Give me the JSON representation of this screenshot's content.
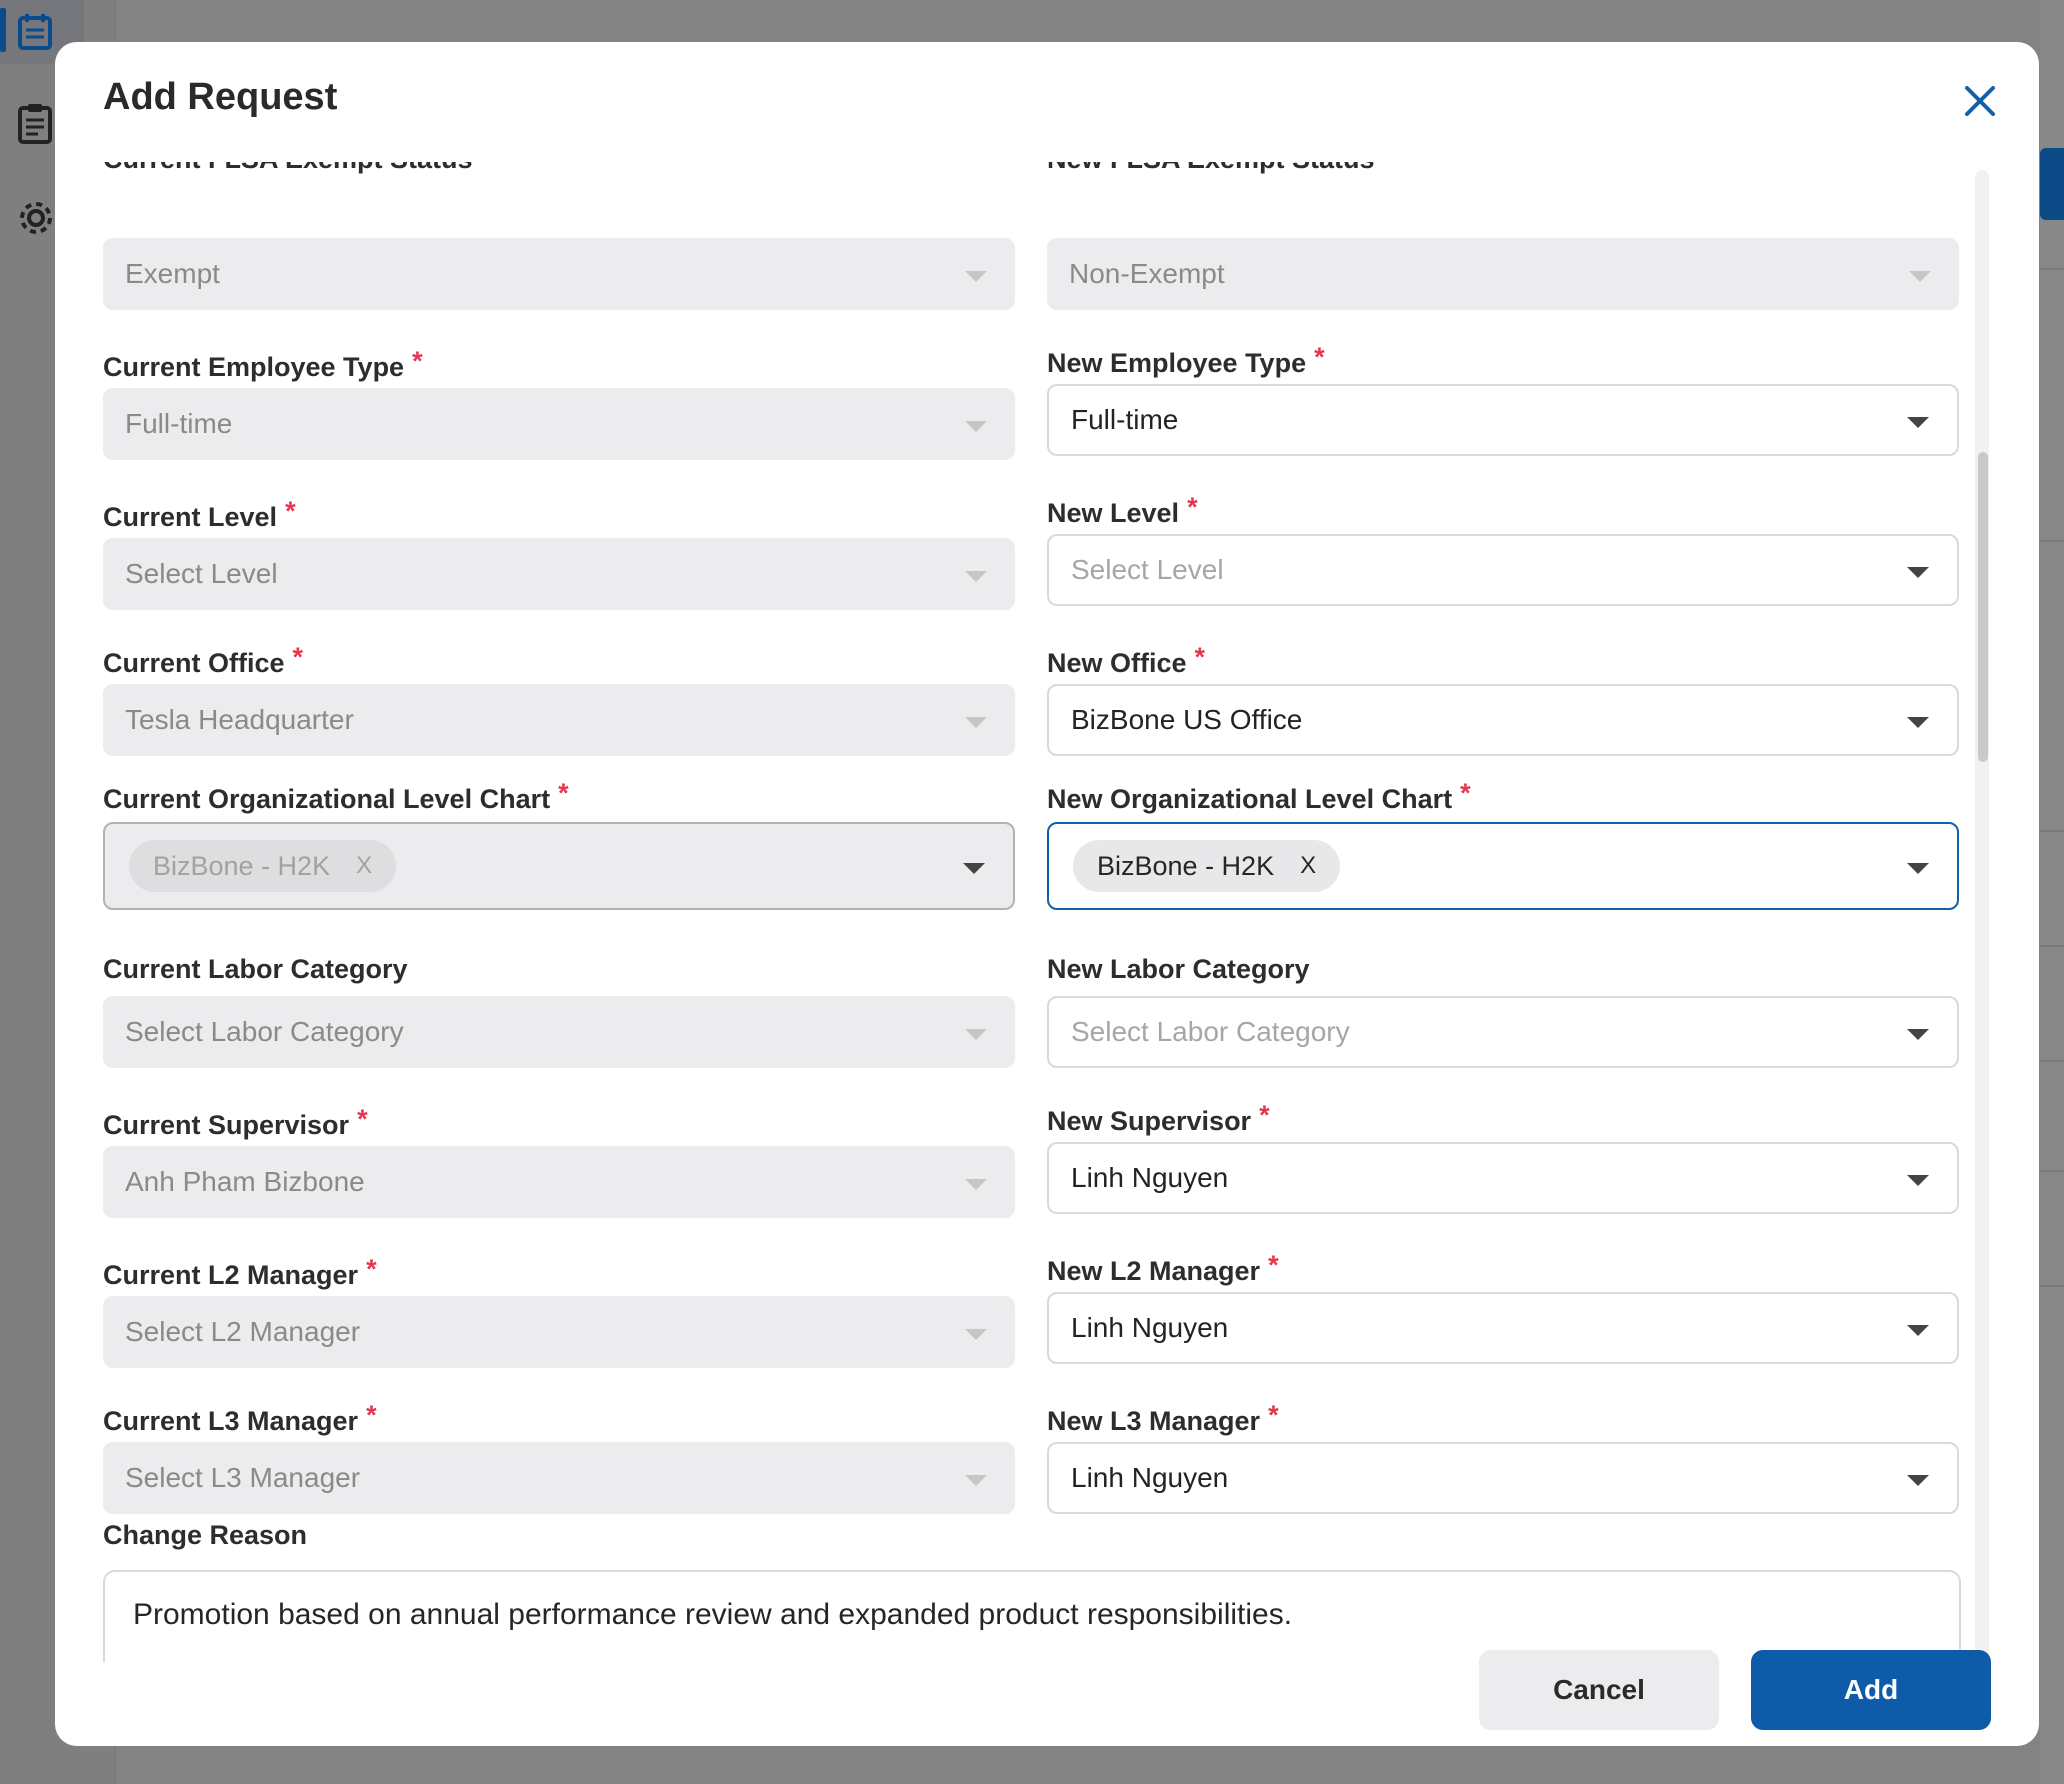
{
  "modal": {
    "title": "Add Request",
    "close_icon": "close-icon"
  },
  "form": {
    "current_flsa_label": "Current FLSA Exempt Status",
    "new_flsa_label": "New FLSA Exempt Status",
    "current_flsa_value": "Exempt",
    "new_flsa_value": "Non-Exempt",
    "current_employee_type_label": "Current Employee Type",
    "current_employee_type_value": "Full-time",
    "new_employee_type_label": "New Employee Type",
    "new_employee_type_value": "Full-time",
    "current_level_label": "Current Level",
    "current_level_value": "Select Level",
    "new_level_label": "New Level",
    "new_level_placeholder": "Select Level",
    "current_office_label": "Current Office",
    "current_office_value": "Tesla Headquarter",
    "new_office_label": "New Office",
    "new_office_value": "BizBone US Office",
    "current_org_chart_label": "Current Organizational Level Chart",
    "current_org_chart_chip": "BizBone - H2K",
    "new_org_chart_label": "New Organizational Level Chart",
    "new_org_chart_chip": "BizBone - H2K",
    "chip_remove": "X",
    "current_labor_label": "Current Labor Category",
    "current_labor_value": "Select Labor Category",
    "new_labor_label": "New Labor Category",
    "new_labor_placeholder": "Select Labor Category",
    "current_supervisor_label": "Current Supervisor",
    "current_supervisor_value": "Anh Pham Bizbone",
    "new_supervisor_label": "New Supervisor",
    "new_supervisor_value": "Linh Nguyen",
    "current_l2_label": "Current L2 Manager",
    "current_l2_value": "Select L2 Manager",
    "new_l2_label": "New L2 Manager",
    "new_l2_value": "Linh Nguyen",
    "current_l3_label": "Current L3 Manager",
    "current_l3_value": "Select L3 Manager",
    "new_l3_label": "New L3 Manager",
    "new_l3_value": "Linh Nguyen",
    "change_reason_label": "Change Reason",
    "change_reason_value": "Promotion based on annual performance review and expanded product responsibilities.",
    "required_mark": "*"
  },
  "footer": {
    "cancel_label": "Cancel",
    "add_label": "Add"
  },
  "colors": {
    "primary": "#0d5ba9",
    "required": "#e0384f"
  }
}
